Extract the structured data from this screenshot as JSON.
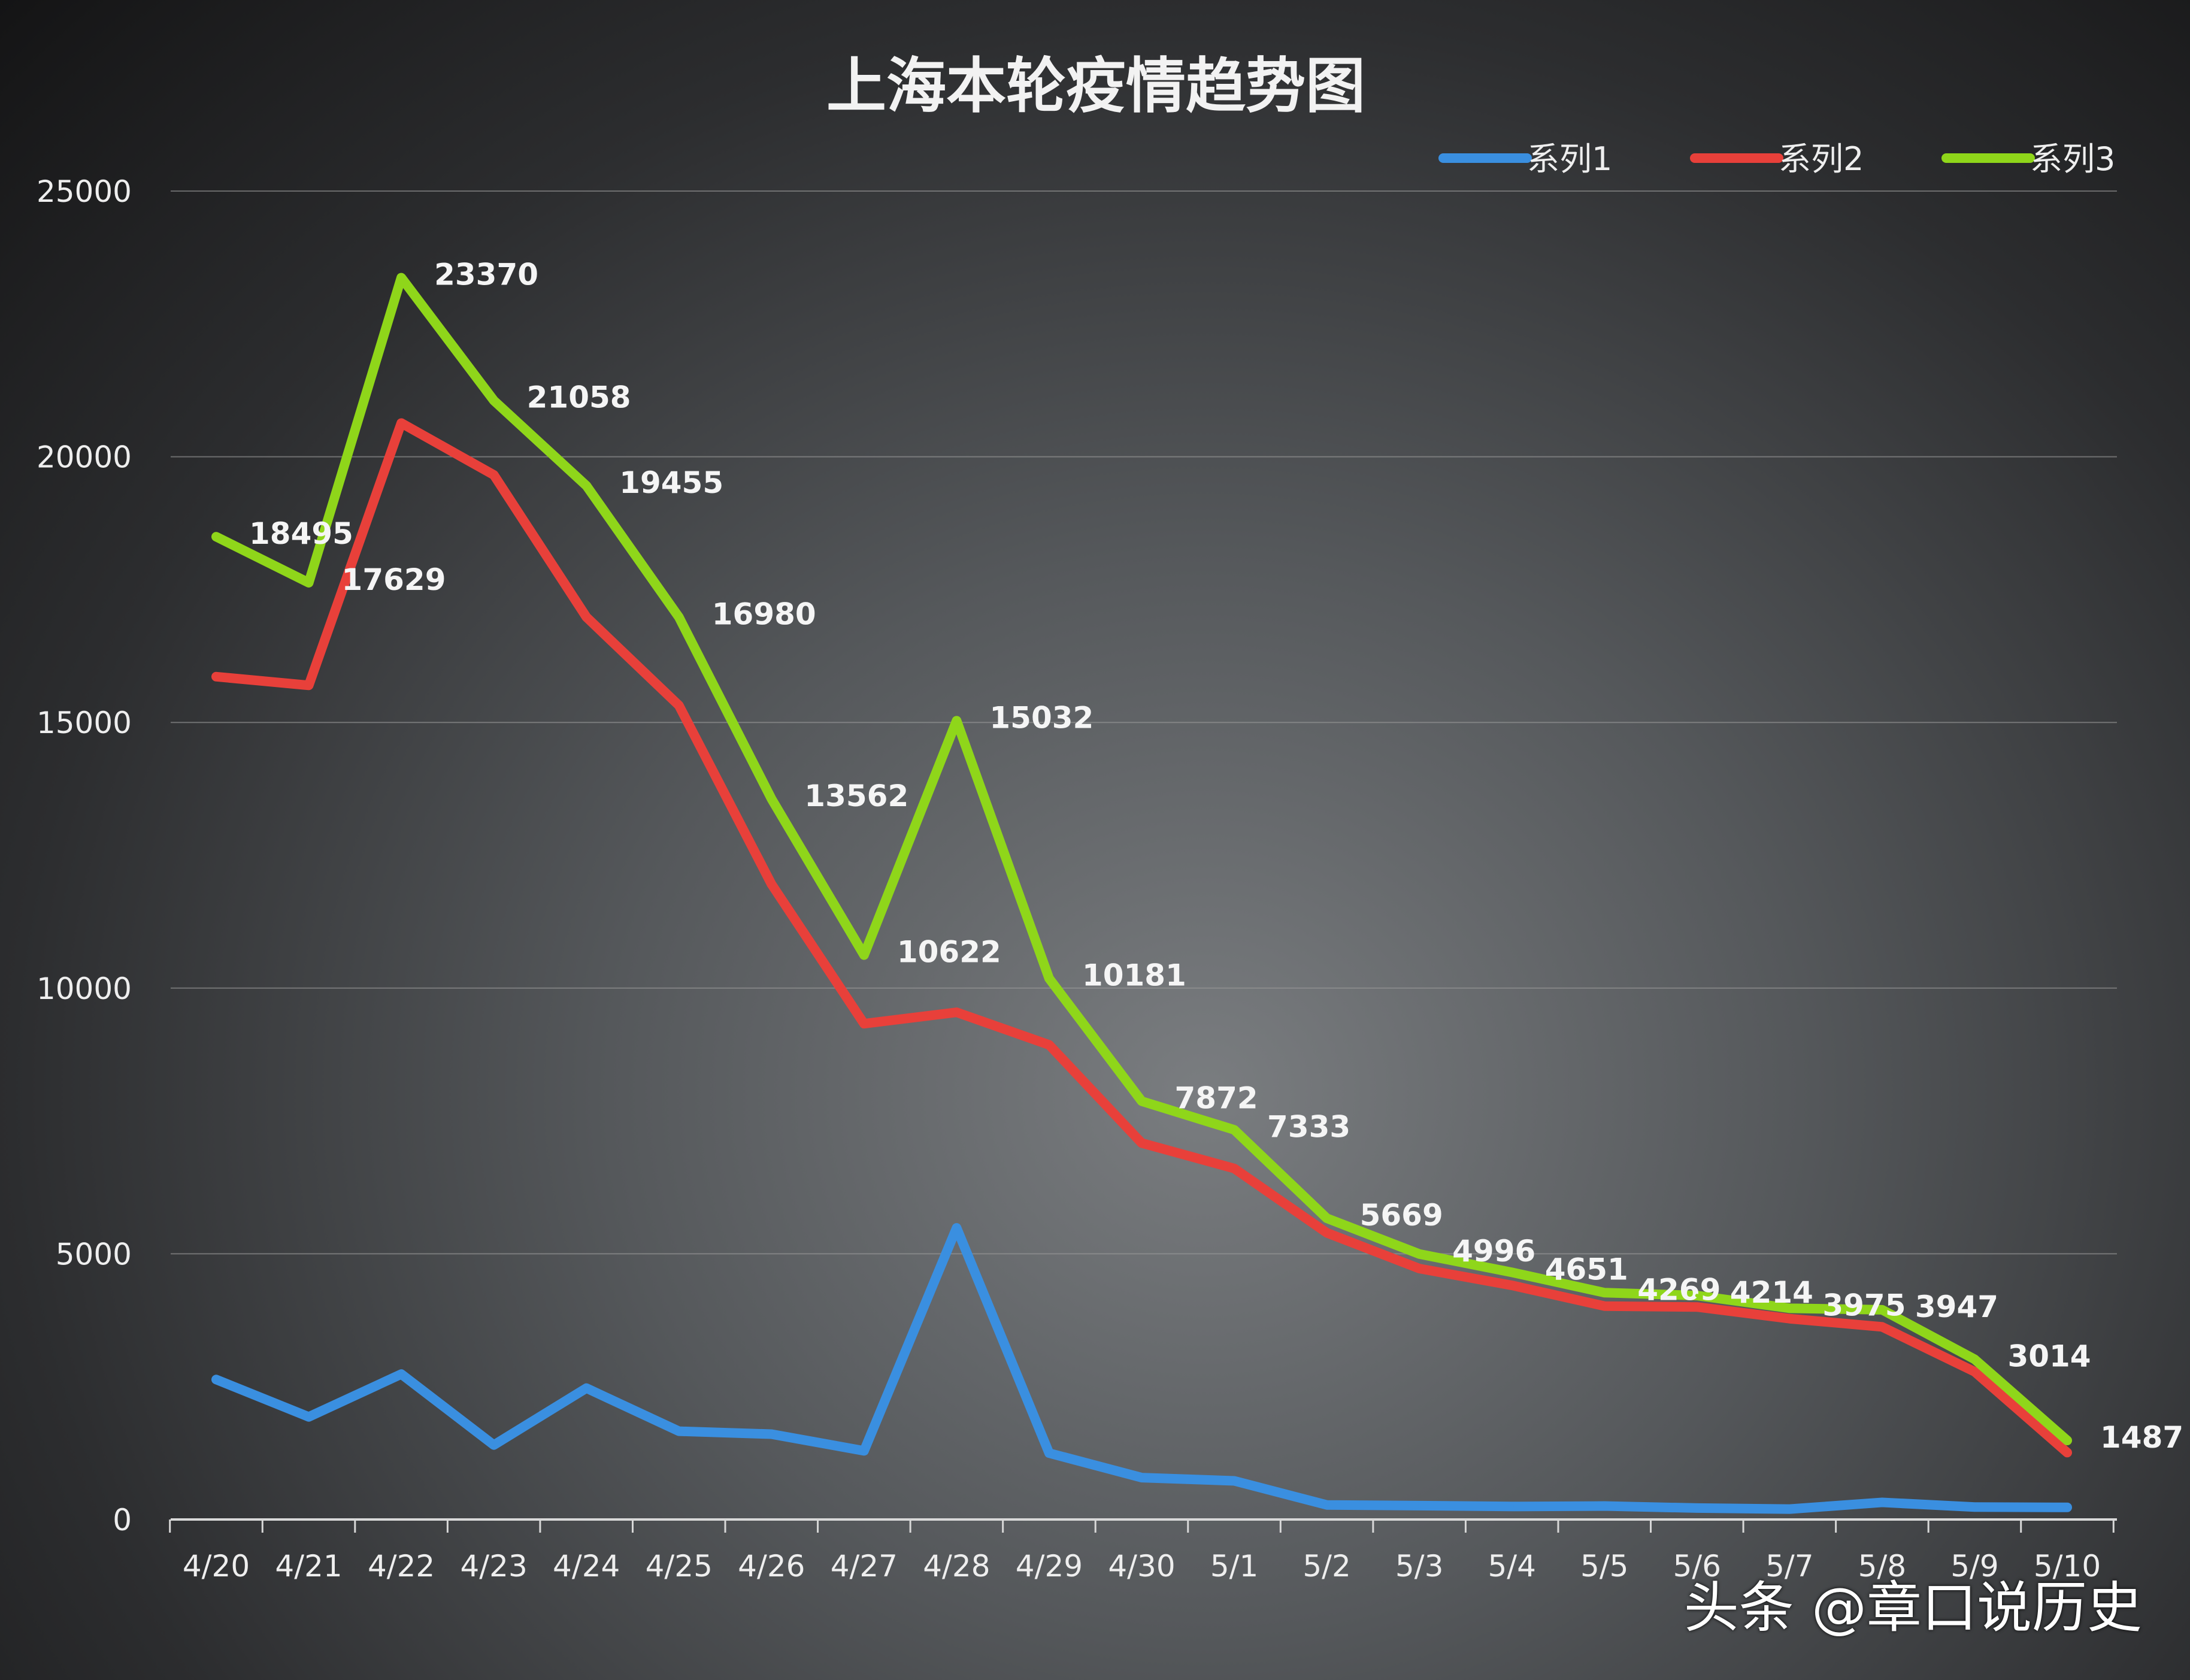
{
  "chart_data": {
    "type": "line",
    "title": "上海本轮疫情趋势图",
    "xlabel": "",
    "ylabel": "",
    "ylim": [
      0,
      25000
    ],
    "yticks": [
      0,
      5000,
      10000,
      15000,
      20000,
      25000
    ],
    "grid": true,
    "legend_position": "top-right",
    "categories": [
      "4/20",
      "4/21",
      "4/22",
      "4/23",
      "4/24",
      "4/25",
      "4/26",
      "4/27",
      "4/28",
      "4/29",
      "4/30",
      "5/1",
      "5/2",
      "5/3",
      "5/4",
      "5/5",
      "5/6",
      "5/7",
      "5/8",
      "5/9",
      "5/10"
    ],
    "series": [
      {
        "name": "系列1",
        "color": "#3a8fe0",
        "values": [
          2634,
          1931,
          2736,
          1401,
          2472,
          1661,
          1606,
          1292,
          5487,
          1249,
          788,
          727,
          274,
          260,
          245,
          253,
          215,
          196,
          322,
          234,
          228
        ],
        "labels_shown": false
      },
      {
        "name": "系列2",
        "color": "#e8403a",
        "values": [
          15861,
          15698,
          20634,
          19657,
          16983,
          15319,
          11956,
          9330,
          9545,
          8932,
          7084,
          6606,
          5395,
          4722,
          4406,
          4016,
          3999,
          3779,
          3625,
          2780,
          1259
        ],
        "labels_shown": false
      },
      {
        "name": "系列3",
        "color": "#8fd61a",
        "values": [
          18495,
          17629,
          23370,
          21058,
          19455,
          16980,
          13562,
          10622,
          15032,
          10181,
          7872,
          7333,
          5669,
          4996,
          4651,
          4269,
          4214,
          3975,
          3947,
          3014,
          1487
        ],
        "labels_shown": true
      }
    ]
  },
  "watermark": "头条 @章口说历史"
}
